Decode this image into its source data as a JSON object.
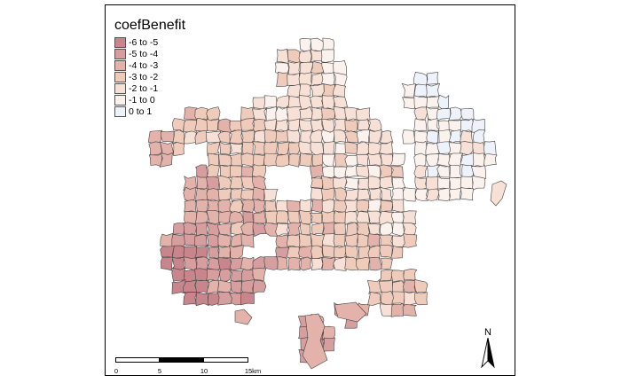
{
  "legend": {
    "title": "coefBenefit",
    "items": [
      {
        "label": "-6 to -5",
        "color": "#c8868c"
      },
      {
        "label": "-5 to -4",
        "color": "#d79e9f"
      },
      {
        "label": "-4 to -3",
        "color": "#e3b2ab"
      },
      {
        "label": "-3 to -2",
        "color": "#efcbbc"
      },
      {
        "label": "-2 to -1",
        "color": "#f7e0d5"
      },
      {
        "label": "-1 to 0",
        "color": "#fbf2ee"
      },
      {
        "label": "0 to 1",
        "color": "#eef2fa"
      }
    ]
  },
  "scalebar": {
    "labels": [
      "0",
      "5",
      "10",
      "15km"
    ]
  },
  "north_arrow": {
    "label": "N",
    "icon": "north-arrow-icon"
  }
}
